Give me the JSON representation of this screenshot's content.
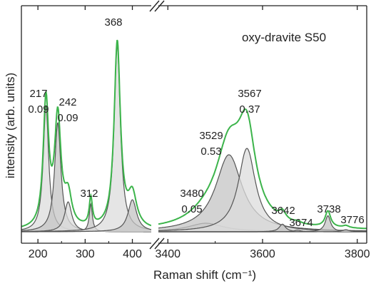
{
  "chart_data": {
    "type": "line",
    "title": "oxy-dravite S50",
    "xlabel": "Raman shift (cm⁻¹)",
    "ylabel": "intensity (arb. units)",
    "grid": false,
    "legend": "none",
    "y_ticks_shown": false,
    "colors": {
      "measured": "#3cb44b",
      "fit": "#555555",
      "fill_low": "#dcdcdc",
      "fill_high": "#c4c4c4",
      "frame": "#222222"
    },
    "panels": [
      {
        "id": "low",
        "xlim": [
          165,
          440
        ],
        "ylim": [
          0,
          1.0
        ],
        "x_ticks": [
          200,
          300,
          400
        ],
        "tick_labels": [
          "200",
          "300",
          "400"
        ]
      },
      {
        "id": "high",
        "xlim": [
          3380,
          3820
        ],
        "ylim": [
          0,
          1.0
        ],
        "x_ticks": [
          3400,
          3600,
          3800
        ],
        "tick_labels": [
          "3400",
          "3600",
          "3800"
        ]
      }
    ],
    "bands": [
      {
        "panel": "low",
        "position": 217,
        "amplitude": 0.59,
        "width": 7,
        "label": "217",
        "ratio": "0.09"
      },
      {
        "panel": "low",
        "position": 242,
        "amplitude": 0.51,
        "width": 8,
        "label": "242",
        "ratio": "0.09"
      },
      {
        "panel": "low",
        "position": 264,
        "amplitude": 0.14,
        "width": 9,
        "label": "",
        "ratio": ""
      },
      {
        "panel": "low",
        "position": 312,
        "amplitude": 0.13,
        "width": 4,
        "label": "312",
        "ratio": ""
      },
      {
        "panel": "low",
        "position": 368,
        "amplitude": 0.87,
        "width": 8,
        "label": "368",
        "ratio": ""
      },
      {
        "panel": "low",
        "position": 400,
        "amplitude": 0.15,
        "width": 11,
        "label": "",
        "ratio": ""
      },
      {
        "panel": "high",
        "position": 3480,
        "amplitude": 0.04,
        "width": 45,
        "label": "3480",
        "ratio": "0.05"
      },
      {
        "panel": "high",
        "position": 3529,
        "amplitude": 0.36,
        "width": 34,
        "label": "3529",
        "ratio": "0.53"
      },
      {
        "panel": "high",
        "position": 3567,
        "amplitude": 0.39,
        "width": 22,
        "label": "3567",
        "ratio": "0.37"
      },
      {
        "panel": "high",
        "position": 3642,
        "amplitude": 0.036,
        "width": 8,
        "label": "3642",
        "ratio": ""
      },
      {
        "panel": "high",
        "position": 3674,
        "amplitude": 0.008,
        "width": 8,
        "label": "3674",
        "ratio": ""
      },
      {
        "panel": "high",
        "position": 3738,
        "amplitude": 0.075,
        "width": 7,
        "label": "3738",
        "ratio": ""
      },
      {
        "panel": "high",
        "position": 3776,
        "amplitude": 0.01,
        "width": 8,
        "label": "3776",
        "ratio": ""
      }
    ]
  }
}
